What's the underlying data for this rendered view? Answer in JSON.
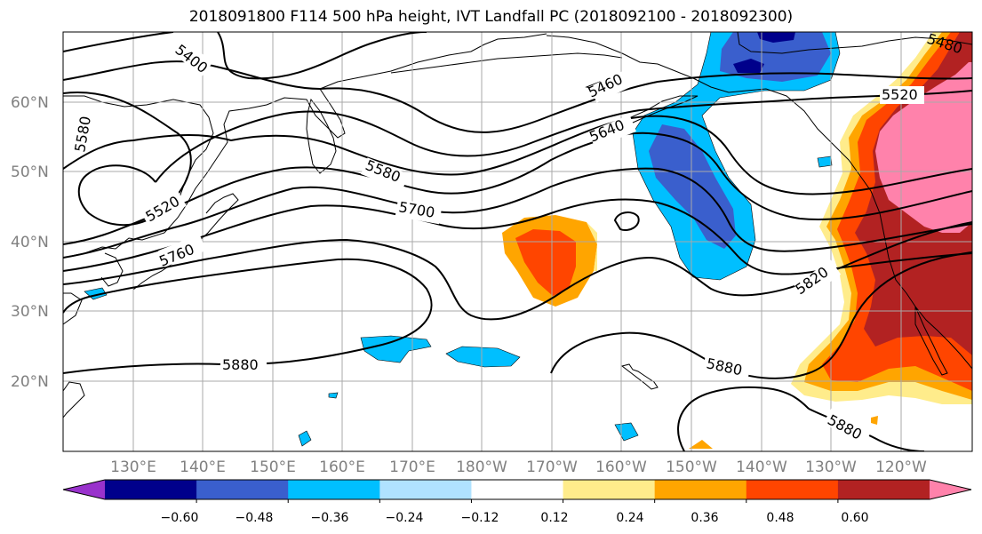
{
  "title": "2018091800 F114 500 hPa height, IVT Landfall PC (2018092100 - 2018092300)",
  "latitude_labels": [
    "60°N",
    "50°N",
    "40°N",
    "30°N",
    "20°N"
  ],
  "longitude_labels": [
    "130°E",
    "140°E",
    "150°E",
    "160°E",
    "170°E",
    "180°W",
    "170°W",
    "160°W",
    "150°W",
    "140°W",
    "130°W",
    "120°W"
  ],
  "contour_labels": [
    "5400",
    "5460",
    "5520",
    "5580",
    "5640",
    "5700",
    "5760",
    "5820",
    "5880",
    "5880",
    "5880",
    "5480",
    "5520",
    "5580"
  ],
  "colorbar": {
    "tick_labels": [
      "−0.60",
      "−0.48",
      "−0.36",
      "−0.24",
      "−0.12",
      "0.12",
      "0.24",
      "0.36",
      "0.48",
      "0.60"
    ],
    "colors": [
      "#9932cc",
      "#00008b",
      "#3a5fcd",
      "#00bfff",
      "#b0e2ff",
      "#ffffff",
      "#ffec8b",
      "#ffa500",
      "#ff4500",
      "#b22222",
      "#ff82ab"
    ]
  }
}
